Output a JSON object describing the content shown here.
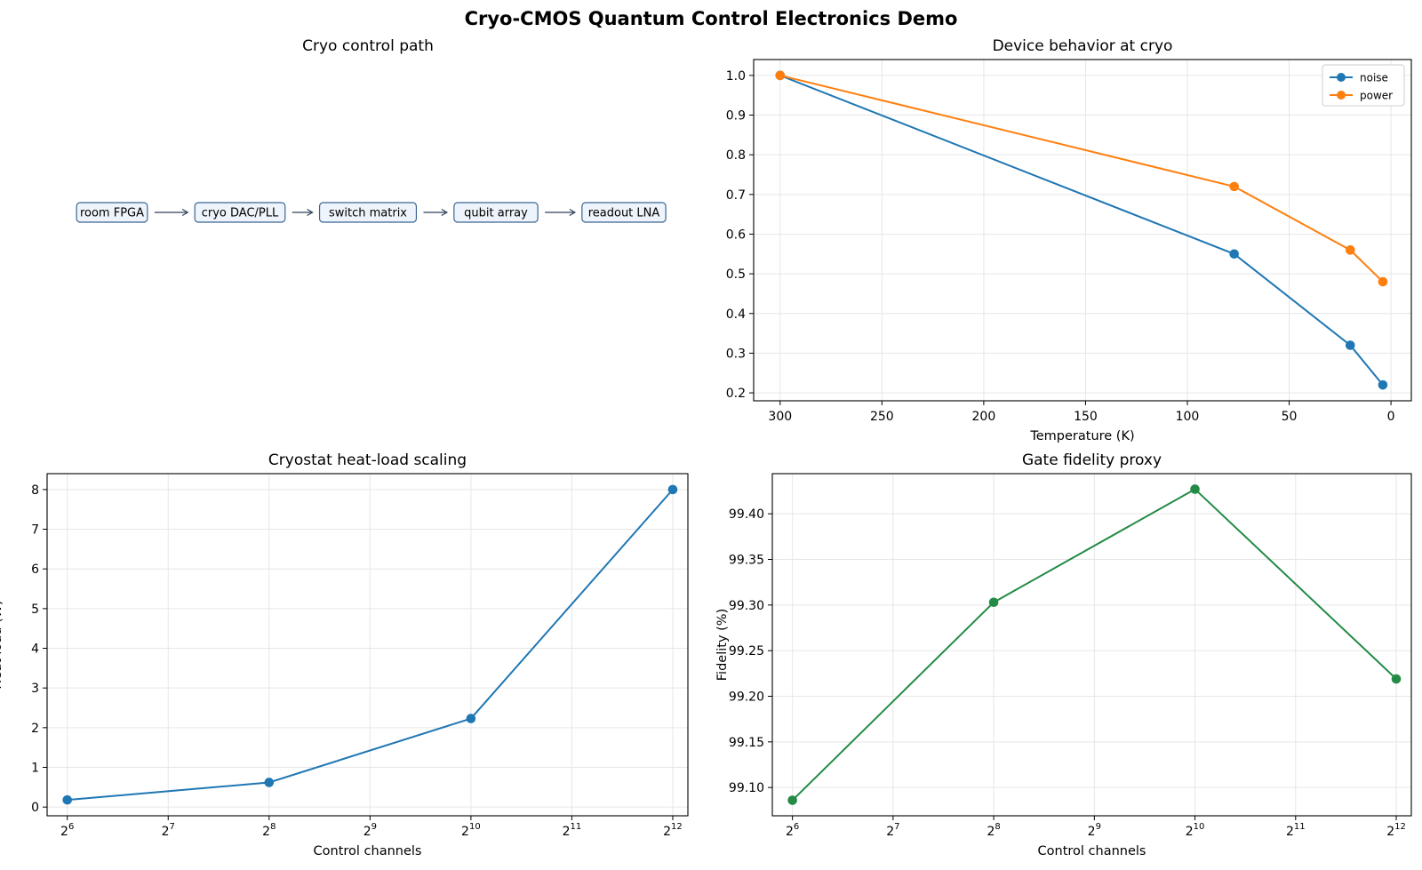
{
  "figure": {
    "title": "Cryo-CMOS Quantum Control Electronics Demo"
  },
  "flow": {
    "title": "Cryo control path",
    "nodes": [
      "room FPGA",
      "cryo DAC/PLL",
      "switch matrix",
      "qubit array",
      "readout LNA"
    ],
    "box_fill": "#eef4fb",
    "box_stroke": "#3a6593",
    "arrow_color": "#2f4259"
  },
  "chart_data": [
    {
      "type": "line",
      "title": "Device behavior at cryo",
      "xlabel": "Temperature (K)",
      "ylabel": "",
      "x": [
        300,
        77,
        20,
        4
      ],
      "xlim": [
        313,
        -10
      ],
      "x_inverted": true,
      "xticks": [
        300,
        250,
        200,
        150,
        100,
        50,
        0
      ],
      "ylim": [
        0.18,
        1.04
      ],
      "yticks": [
        0.2,
        0.3,
        0.4,
        0.5,
        0.6,
        0.7,
        0.8,
        0.9,
        1.0
      ],
      "ytick_decimals": 1,
      "grid": true,
      "legend": "top-right",
      "series": [
        {
          "name": "noise",
          "values": [
            1.0,
            0.55,
            0.32,
            0.22
          ],
          "color": "#1f77b4"
        },
        {
          "name": "power",
          "values": [
            1.0,
            0.72,
            0.56,
            0.48
          ],
          "color": "#ff7f0e"
        }
      ]
    },
    {
      "type": "line",
      "title": "Cryostat heat-load scaling",
      "xlabel": "Control channels",
      "ylabel": "Heat load (W)",
      "x_scale": "log2",
      "x": [
        64,
        256,
        1024,
        4096
      ],
      "xlim_exp": [
        5.8,
        12.15
      ],
      "xticks_exp": [
        6,
        7,
        8,
        9,
        10,
        11,
        12
      ],
      "ylim": [
        -0.22,
        8.4
      ],
      "yticks": [
        0,
        1,
        2,
        3,
        4,
        5,
        6,
        7,
        8
      ],
      "ytick_decimals": 0,
      "grid": true,
      "series": [
        {
          "values": [
            0.18,
            0.62,
            2.23,
            8.0
          ],
          "color": "#1f77b4"
        }
      ]
    },
    {
      "type": "line",
      "title": "Gate fidelity proxy",
      "xlabel": "Control channels",
      "ylabel": "Fidelity (%)",
      "x_scale": "log2",
      "x": [
        64,
        256,
        1024,
        4096
      ],
      "xlim_exp": [
        5.8,
        12.15
      ],
      "xticks_exp": [
        6,
        7,
        8,
        9,
        10,
        11,
        12
      ],
      "ylim": [
        99.069,
        99.444
      ],
      "yticks": [
        99.1,
        99.15,
        99.2,
        99.25,
        99.3,
        99.35,
        99.4
      ],
      "ytick_decimals": 2,
      "grid": true,
      "series": [
        {
          "values": [
            99.086,
            99.303,
            99.427,
            99.219
          ],
          "color": "#238b45"
        }
      ]
    }
  ]
}
